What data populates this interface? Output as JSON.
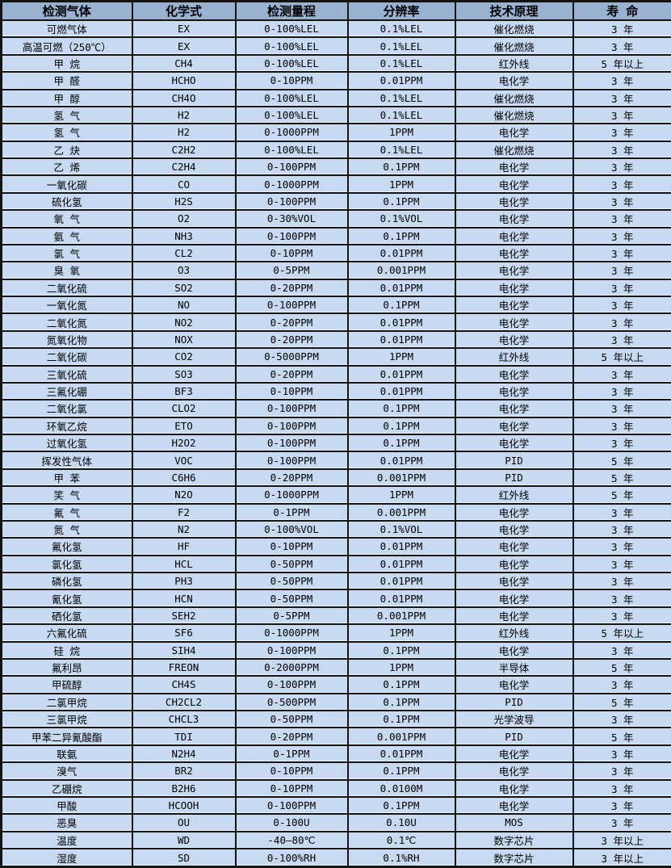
{
  "colors": {
    "header_bg": "#9ab2d2",
    "row_bg": "#c8daf1",
    "border": "#141414"
  },
  "table": {
    "columns": [
      "检测气体",
      "化学式",
      "检测量程",
      "分辨率",
      "技术原理",
      "寿 命"
    ],
    "column_keys": [
      "gas-name",
      "chemical-formula",
      "detection-range",
      "resolution",
      "technology-principle",
      "lifespan"
    ],
    "rows": [
      [
        "可燃气体",
        "EX",
        "0-100%LEL",
        "0.1%LEL",
        "催化燃烧",
        "3 年"
      ],
      [
        "高温可燃（250℃）",
        "EX",
        "0-100%LEL",
        "0.1%LEL",
        "催化燃烧",
        "3 年"
      ],
      [
        "甲 烷",
        "CH4",
        "0-100%LEL",
        "0.1%LEL",
        "红外线",
        "5 年以上"
      ],
      [
        "甲 醛",
        "HCHO",
        "0-10PPM",
        "0.01PPM",
        "电化学",
        "3 年"
      ],
      [
        "甲 醇",
        "CH4O",
        "0-100%LEL",
        "0.1%LEL",
        "催化燃烧",
        "3 年"
      ],
      [
        "氢 气",
        "H2",
        "0-100%LEL",
        "0.1%LEL",
        "催化燃烧",
        "3 年"
      ],
      [
        "氢 气",
        "H2",
        "0-1000PPM",
        "1PPM",
        "电化学",
        "3 年"
      ],
      [
        "乙 炔",
        "C2H2",
        "0-100%LEL",
        "0.1%LEL",
        "催化燃烧",
        "3 年"
      ],
      [
        "乙 烯",
        "C2H4",
        "0-100PPM",
        "0.1PPM",
        "电化学",
        "3 年"
      ],
      [
        "一氧化碳",
        "CO",
        "0-1000PPM",
        "1PPM",
        "电化学",
        "3 年"
      ],
      [
        "硫化氢",
        "H2S",
        "0-100PPM",
        "0.1PPM",
        "电化学",
        "3 年"
      ],
      [
        "氧 气",
        "O2",
        "0-30%VOL",
        "0.1%VOL",
        "电化学",
        "3 年"
      ],
      [
        "氨 气",
        "NH3",
        "0-100PPM",
        "0.1PPM",
        "电化学",
        "3 年"
      ],
      [
        "氯 气",
        "CL2",
        "0-10PPM",
        "0.01PPM",
        "电化学",
        "3 年"
      ],
      [
        "臭 氧",
        "O3",
        "0-5PPM",
        "0.001PPM",
        "电化学",
        "3 年"
      ],
      [
        "二氧化硫",
        "SO2",
        "0-20PPM",
        "0.01PPM",
        "电化学",
        "3 年"
      ],
      [
        "一氧化氮",
        "NO",
        "0-100PPM",
        "0.1PPM",
        "电化学",
        "3 年"
      ],
      [
        "二氧化氮",
        "NO2",
        "0-20PPM",
        "0.01PPM",
        "电化学",
        "3 年"
      ],
      [
        "氮氧化物",
        "NOX",
        "0-20PPM",
        "0.01PPM",
        "电化学",
        "3 年"
      ],
      [
        "二氧化碳",
        "CO2",
        "0-5000PPM",
        "1PPM",
        "红外线",
        "5 年以上"
      ],
      [
        "三氧化硫",
        "SO3",
        "0-20PPM",
        "0.01PPM",
        "电化学",
        "3 年"
      ],
      [
        "三氟化硼",
        "BF3",
        "0-10PPM",
        "0.01PPM",
        "电化学",
        "3 年"
      ],
      [
        "二氧化氯",
        "CLO2",
        "0-100PPM",
        "0.1PPM",
        "电化学",
        "3 年"
      ],
      [
        "环氧乙烷",
        "ETO",
        "0-100PPM",
        "0.1PPM",
        "电化学",
        "3 年"
      ],
      [
        "过氧化氢",
        "H2O2",
        "0-100PPM",
        "0.1PPM",
        "电化学",
        "3 年"
      ],
      [
        "挥发性气体",
        "VOC",
        "0-100PPM",
        "0.01PPM",
        "PID",
        "5 年"
      ],
      [
        "甲 苯",
        "C6H6",
        "0-20PPM",
        "0.001PPM",
        "PID",
        "5 年"
      ],
      [
        "笑 气",
        "N2O",
        "0-1000PPM",
        "1PPM",
        "红外线",
        "5 年"
      ],
      [
        "氟 气",
        "F2",
        "0-1PPM",
        "0.001PPM",
        "电化学",
        "3 年"
      ],
      [
        "氮 气",
        "N2",
        "0-100%VOL",
        "0.1%VOL",
        "电化学",
        "3 年"
      ],
      [
        "氟化氢",
        "HF",
        "0-10PPM",
        "0.01PPM",
        "电化学",
        "3 年"
      ],
      [
        "氯化氢",
        "HCL",
        "0-50PPM",
        "0.01PPM",
        "电化学",
        "3 年"
      ],
      [
        "磷化氢",
        "PH3",
        "0-50PPM",
        "0.01PPM",
        "电化学",
        "3 年"
      ],
      [
        "氰化氢",
        "HCN",
        "0-50PPM",
        "0.01PPM",
        "电化学",
        "3 年"
      ],
      [
        "硒化氢",
        "SEH2",
        "0-5PPM",
        "0.001PPM",
        "电化学",
        "3 年"
      ],
      [
        "六氟化硫",
        "SF6",
        "0-1000PPM",
        "1PPM",
        "红外线",
        "5 年以上"
      ],
      [
        "硅 烷",
        "SIH4",
        "0-100PPM",
        "0.1PPM",
        "电化学",
        "3 年"
      ],
      [
        "氟利昂",
        "FREON",
        "0-2000PPM",
        "1PPM",
        "半导体",
        "5 年"
      ],
      [
        "甲硫醇",
        "CH4S",
        "0-100PPM",
        "0.1PPM",
        "电化学",
        "3 年"
      ],
      [
        "二氯甲烷",
        "CH2CL2",
        "0-500PPM",
        "0.1PPM",
        "PID",
        "5 年"
      ],
      [
        "三氯甲烷",
        "CHCL3",
        "0-50PPM",
        "0.1PPM",
        "光学波导",
        "3 年"
      ],
      [
        "甲苯二异氰酸酯",
        "TDI",
        "0-20PPM",
        "0.001PPM",
        "PID",
        "5 年"
      ],
      [
        "联氨",
        "N2H4",
        "0-1PPM",
        "0.01PPM",
        "电化学",
        "3 年"
      ],
      [
        "溴气",
        "BR2",
        "0-10PPM",
        "0.1PPM",
        "电化学",
        "3 年"
      ],
      [
        "乙硼烷",
        "B2H6",
        "0-10PPM",
        "0.0100M",
        "电化学",
        "3 年"
      ],
      [
        "甲酸",
        "HCOOH",
        "0-100PPM",
        "0.1PPM",
        "电化学",
        "3 年"
      ],
      [
        "恶臭",
        "OU",
        "0-100U",
        "0.10U",
        "MOS",
        "3 年"
      ],
      [
        "温度",
        "WD",
        "-40—80℃",
        "0.1℃",
        "数字芯片",
        "3 年以上"
      ],
      [
        "湿度",
        "SD",
        "0-100%RH",
        "0.1%RH",
        "数字芯片",
        "3 年以上"
      ]
    ]
  }
}
